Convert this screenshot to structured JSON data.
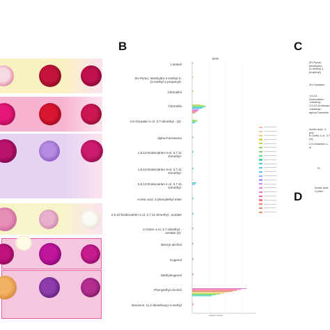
{
  "panels": {
    "a": {
      "letter": "",
      "rows": [
        {
          "band": "#f9f2c0",
          "flowers": [
            {
              "c1": "#f7dbe4",
              "c2": "#d24c75"
            },
            {
              "c1": "#c5143b",
              "c2": "#5a0615"
            },
            {
              "c1": "#c0114f",
              "c2": "#5d0025"
            }
          ]
        },
        {
          "band": "#f7b3cf",
          "flowers": [
            {
              "c1": "#e6177a",
              "c2": "#7e0538"
            },
            {
              "c1": "#d9162f",
              "c2": "#6a0614"
            },
            {
              "c1": "#cc1752",
              "c2": "#62051f"
            }
          ]
        },
        {
          "band": "#e5d2f2",
          "flowers": [
            {
              "c1": "#b9126b",
              "c2": "#5a0038"
            },
            {
              "c1": "#b48be0",
              "c2": "#6b3ca6"
            },
            {
              "c1": "#cc1b6d",
              "c2": "#6b0335"
            }
          ]
        },
        {
          "band": "#f7f4c9",
          "flowers": [
            {
              "c1": "#e88fb7",
              "c2": "#b24682"
            },
            {
              "c1": "#e9b0cd",
              "c2": "#b66894"
            },
            {
              "c1": "#fbfaf4",
              "c2": "#d9c7b7"
            }
          ]
        },
        {
          "band": "#f4c7de",
          "flowers": [
            {
              "c1": "#c0127c",
              "c2": "#650042"
            },
            {
              "c1": "#c0159d",
              "c2": "#5d0059"
            },
            {
              "c1": "#c41c8d",
              "c2": "#6a004b"
            }
          ]
        },
        {
          "band": "#f4c7de",
          "flowers": [
            {
              "c1": "#f0b165",
              "c2": "#c96a1c"
            },
            {
              "c1": "#8e3cab",
              "c2": "#3c0e5c"
            },
            {
              "c1": "#b22d8e",
              "c2": "#5a0b46"
            }
          ]
        }
      ],
      "extra_flower": {
        "c1": "#fffbe8",
        "c2": "#e5d3a6"
      }
    },
    "b": {
      "letter": "B",
      "chart_title": "EFR",
      "compounds": [
        "Linalool",
        "2H-Pyran, tetrahydro-4-methyl-2-\n(2-methyl-1-propenyl)-",
        "Citronellol",
        "Citronella",
        "2,6-Octadien-1-ol, 3,7-dimethyl-, (Z)-",
        "alpha-Farnesene",
        "1,6,10-Dodecatrien-3-ol, 3,7,11\n-trimethyl-",
        "1,6,10-Dodecatrien-3-ol, 3,7,11\n-trimethyl-",
        "2,6,10-Dodecatrien-1-ol, 3,7,11\n-trimethyl-",
        "Acetic acid, 2-phenylethyl ester",
        "2,6,10-Dodecatrien-1-ol, 3,7,11-trimethyl-, acetate",
        "2-Octen-1-ol, 3,7-dimethyl-,\nacetate (Z)-",
        "Benzyl alcohol",
        "Eugenol",
        "Methyleugenol",
        "Phenylethyl Alcohol",
        "Benzene, (1,2-dimethoxy)-4-methyl"
      ],
      "x_axis_label": "relative content"
    },
    "c": {
      "letter": "C",
      "labels": [
        "2H-Pyran, tetrahydro-\n(2-methyl-1-propenyl)",
        "2H-Octadien",
        "1,6,10-Dodecatrien\n-trimethyl-",
        "2,6,10-Dodecatri\n-trimethyl-",
        "alpha-Farnesen",
        "Acetic acid, 2-phe",
        "6-Octen-1-ol, 3,7\n(S)-",
        "2,6-Octadien-1-ol",
        "Pr",
        "Acetic acid, 2-phen"
      ]
    },
    "d": {
      "letter": "D"
    }
  },
  "colors": {
    "series": [
      "#f4b6b2",
      "#f0c49a",
      "#e9c873",
      "#d9d15c",
      "#b9d84e",
      "#93db54",
      "#6edc6b",
      "#52db8c",
      "#46d7ad",
      "#48d1cb",
      "#55c9e3",
      "#6cbff2",
      "#8bb1f8",
      "#ab9ff6",
      "#c98bea",
      "#df7bd6",
      "#ee71bd",
      "#f56fa4",
      "#f7728a",
      "#f37a72",
      "#e8866a",
      "#da9266"
    ]
  }
}
